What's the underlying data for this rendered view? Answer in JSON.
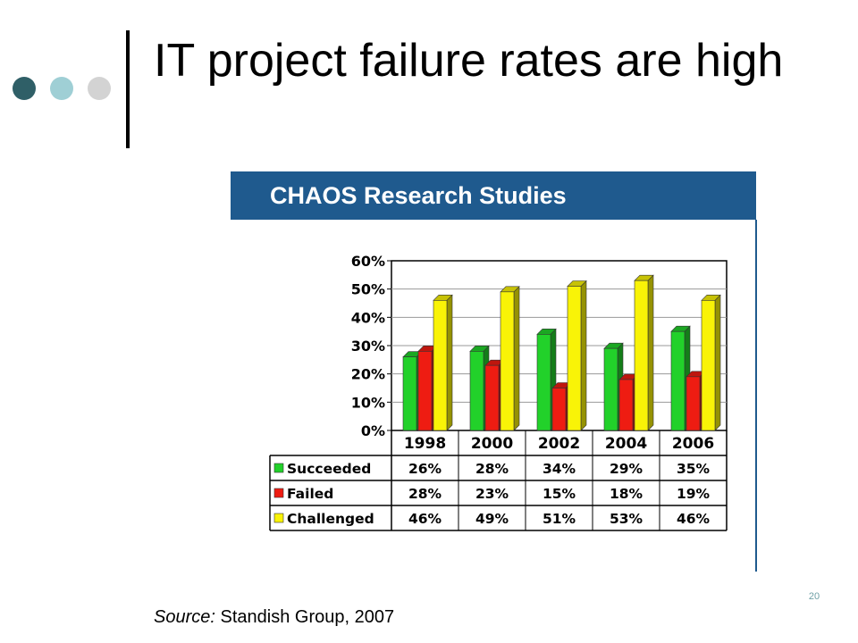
{
  "slide": {
    "title": "IT project failure rates are high",
    "page_number": "20",
    "source_label": "Source:",
    "source_text": "Standish Group, 2007",
    "dot_colors": [
      "#2f5f67",
      "#9fcfd5",
      "#d3d3d3"
    ]
  },
  "chart_data": {
    "type": "bar",
    "title": "CHAOS Research Studies",
    "categories": [
      "1998",
      "2000",
      "2002",
      "2004",
      "2006"
    ],
    "y_ticks": [
      "60%",
      "50%",
      "40%",
      "30%",
      "20%",
      "10%",
      "0%"
    ],
    "ylim": [
      0,
      60
    ],
    "grid": true,
    "series": [
      {
        "name": "Succeeded",
        "color": "#22d12a",
        "values": [
          26,
          28,
          34,
          29,
          35
        ],
        "labels": [
          "26%",
          "28%",
          "34%",
          "29%",
          "35%"
        ]
      },
      {
        "name": "Failed",
        "color": "#ee1c12",
        "values": [
          28,
          23,
          15,
          18,
          19
        ],
        "labels": [
          "28%",
          "23%",
          "15%",
          "18%",
          "19%"
        ]
      },
      {
        "name": "Challenged",
        "color": "#f9f307",
        "values": [
          46,
          49,
          51,
          53,
          46
        ],
        "labels": [
          "46%",
          "49%",
          "51%",
          "53%",
          "46%"
        ]
      }
    ]
  }
}
